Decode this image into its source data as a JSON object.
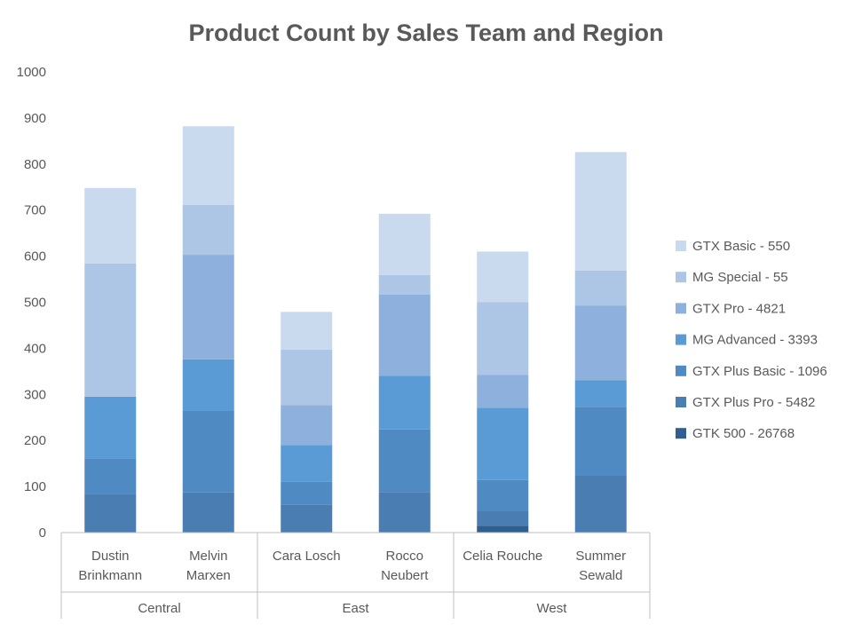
{
  "chart_data": {
    "type": "bar",
    "stacked": true,
    "title": "Product Count by Sales Team and Region",
    "xlabel": "",
    "ylabel": "",
    "ylim": [
      0,
      1000
    ],
    "yticks": [
      0,
      100,
      200,
      300,
      400,
      500,
      600,
      700,
      800,
      900,
      1000
    ],
    "grid": false,
    "legend_position": "right",
    "categories": [
      {
        "lines": [
          "Dustin",
          "Brinkmann"
        ],
        "group": "Central"
      },
      {
        "lines": [
          "Melvin",
          "Marxen"
        ],
        "group": "Central"
      },
      {
        "lines": [
          "Cara Losch"
        ],
        "group": "East"
      },
      {
        "lines": [
          "Rocco",
          "Neubert"
        ],
        "group": "East"
      },
      {
        "lines": [
          "Celia Rouche"
        ],
        "group": "West"
      },
      {
        "lines": [
          "Summer",
          "Sewald"
        ],
        "group": "West"
      }
    ],
    "groups": [
      "Central",
      "East",
      "West"
    ],
    "series": [
      {
        "name": "GTK 500 - 26768",
        "color": "#2e5f8f",
        "values": [
          0,
          0,
          0,
          0,
          15,
          0
        ]
      },
      {
        "name": "GTX Plus Pro - 5482",
        "color": "#4a7db1",
        "values": [
          83,
          87,
          60,
          88,
          33,
          125
        ]
      },
      {
        "name": "GTX Plus Basic - 1096",
        "color": "#4f8ac2",
        "values": [
          77,
          177,
          50,
          136,
          66,
          148
        ]
      },
      {
        "name": "MG Advanced - 3393",
        "color": "#5b9bd5",
        "values": [
          135,
          112,
          80,
          116,
          157,
          58
        ]
      },
      {
        "name": "GTX Pro - 4821",
        "color": "#8db0dc",
        "values": [
          0,
          227,
          87,
          177,
          71,
          162
        ]
      },
      {
        "name": "MG Special - 55",
        "color": "#adc6e5",
        "values": [
          289,
          108,
          120,
          42,
          158,
          76
        ]
      },
      {
        "name": "GTX Basic - 550",
        "color": "#c9d9ee",
        "values": [
          164,
          171,
          82,
          133,
          110,
          257
        ]
      }
    ]
  }
}
